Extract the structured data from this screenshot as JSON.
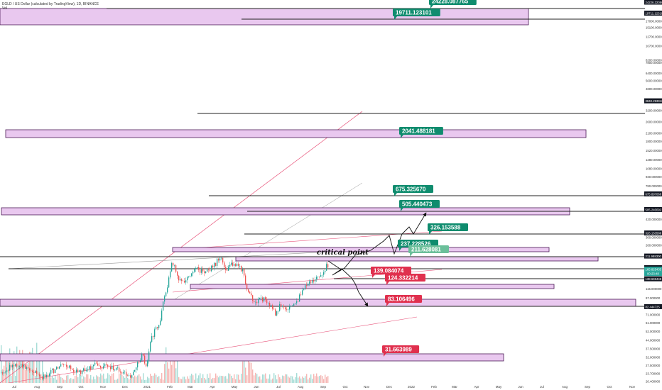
{
  "header": {
    "title": "EGLD / US Dollar (calculated by TradingView), 1D, BINANCE",
    "volume_label": "Vol"
  },
  "colors": {
    "zone_fill": "#e9c8ef",
    "zone_stroke": "#4a1a55",
    "level_line": "#222222",
    "label_green": "#0f8c6e",
    "label_red": "#e0304e",
    "label_light_green": "#6bbf9a",
    "trend_red": "#e8537a",
    "trend_gray": "#9a9a9a",
    "candle_up": "#26a69a",
    "candle_down": "#ef5350",
    "axis_tag_bg": "#131722",
    "price_tag_bg": "#26a69a"
  },
  "annotation": {
    "critical_point_text": "critical point"
  },
  "chart_data": {
    "type": "candlestick",
    "title": "EGLD / US Dollar (calculated by TradingView), 1D, BINANCE",
    "y_scale": "log",
    "x_ticks": [
      "Jul",
      "Aug",
      "Sep",
      "Oct",
      "Nov",
      "Dec",
      "2021",
      "Feb",
      "Mar",
      "Apr",
      "May",
      "Jun",
      "Jul",
      "Aug",
      "Sep",
      "Oct",
      "Nov",
      "Dec",
      "2022",
      "Feb",
      "Mar",
      "Apr",
      "May",
      "Jun",
      "Jul",
      "Aug",
      "Sep",
      "Oct",
      "Nov"
    ],
    "y_ticks": [
      "24226.320862",
      "19711.123101",
      "17000.000000",
      "15100.000000",
      "12700.000000",
      "10700.000000",
      "8200.000000",
      "7800.000000",
      "6400.000000",
      "5600.000000",
      "4800.000000",
      "3840.293910",
      "3200.000000",
      "2600.000000",
      "2100.000000",
      "1800.000000",
      "1520.000000",
      "1280.000000",
      "1080.000000",
      "930.000000",
      "780.000000",
      "675.897068",
      "505.240092",
      "420.000000",
      "326.153588",
      "300.000000",
      "260.000000",
      "211.988300",
      "170.585194",
      "165.825435",
      "138.669445",
      "115.000000",
      "97.000000",
      "82.444725",
      "71.000000",
      "61.000000",
      "52.000000",
      "44.000000",
      "37.500000",
      "32.000000",
      "27.500000",
      "23.700000",
      "20.400000"
    ],
    "current_price": "165.825435",
    "price_tag_time": "00:23:48",
    "levels": [
      {
        "value": "24228.087765",
        "kind": "zone",
        "label_color": "green"
      },
      {
        "value": "19711.123101",
        "kind": "line",
        "label_color": "green"
      },
      {
        "value": "3840.293910",
        "kind": "line"
      },
      {
        "value": "2041.488181",
        "kind": "zone",
        "label_color": "green"
      },
      {
        "value": "675.325670",
        "kind": "line",
        "label_color": "green"
      },
      {
        "value": "505.440473",
        "kind": "zone",
        "label_color": "green"
      },
      {
        "value": "326.153588",
        "kind": "line",
        "label_color": "green"
      },
      {
        "value": "237.228526",
        "kind": "zone",
        "label_color": "green"
      },
      {
        "value": "211.628081",
        "kind": "zone",
        "label_color": "light-green"
      },
      {
        "value": "139.084074",
        "kind": "line",
        "label_color": "red"
      },
      {
        "value": "124.332214",
        "kind": "zone",
        "label_color": "red"
      },
      {
        "value": "83.106496",
        "kind": "zone",
        "label_color": "red"
      },
      {
        "value": "31.663989",
        "kind": "zone",
        "label_color": "red"
      }
    ],
    "grid": false,
    "legend": "none"
  }
}
